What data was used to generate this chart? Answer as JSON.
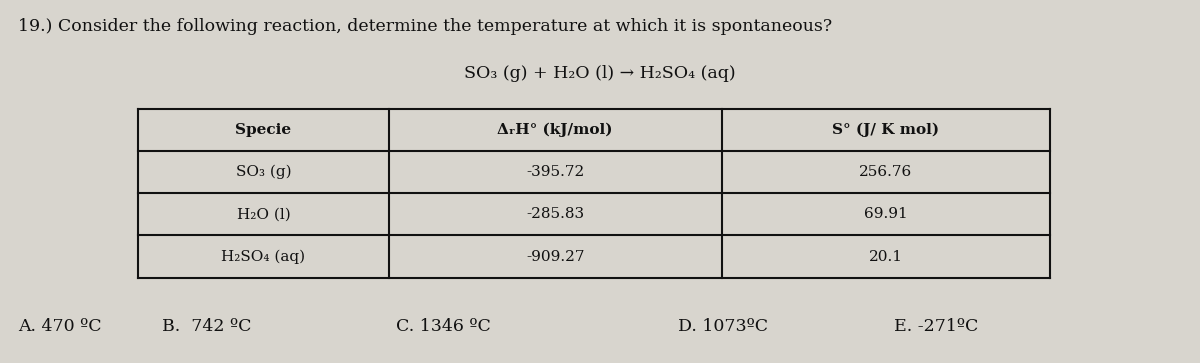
{
  "question_number": "19.)",
  "question_text": "Consider the following reaction, determine the temperature at which it is spontaneous?",
  "reaction": "SO₃ (g) + H₂O (l) → H₂SO₄ (aq)",
  "headers": [
    "Specie",
    "ΔᵣH° (kJ/mol)",
    "S° (J/ K mol)"
  ],
  "species": [
    "SO₃ (g)",
    "H₂O (l)",
    "H₂SO₄ (aq)"
  ],
  "delta_h": [
    "-395.72",
    "-285.83",
    "-909.27"
  ],
  "s_values": [
    "256.76",
    "69.91",
    "20.1"
  ],
  "choices": [
    "A. 470 ºC",
    "B.  742 ºC",
    "C. 1346 ºC",
    "D. 1073ºC",
    "E. -271ºC"
  ],
  "bg_color": "#d8d5ce",
  "text_color": "#111111",
  "table_line_color": "#111111",
  "fig_width": 12.0,
  "fig_height": 3.63
}
